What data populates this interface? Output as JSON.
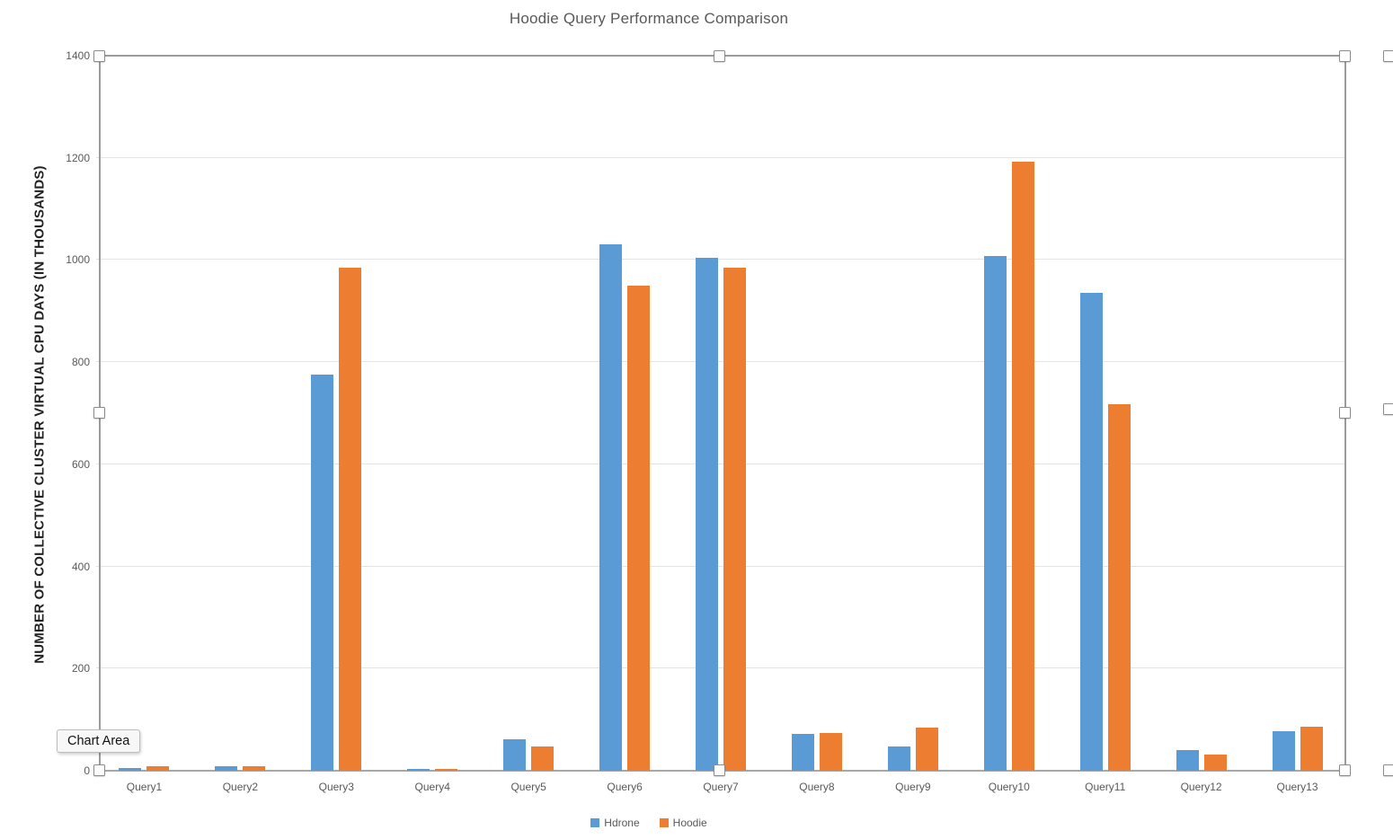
{
  "chart_data": {
    "type": "bar",
    "title": "Hoodie Query Performance Comparison",
    "xlabel": "",
    "ylabel": "NUMBER OF COLLECTIVE CLUSTER VIRTUAL CPU DAYS (IN THOUSANDS)",
    "categories": [
      "Query1",
      "Query2",
      "Query3",
      "Query4",
      "Query5",
      "Query6",
      "Query7",
      "Query8",
      "Query9",
      "Query10",
      "Query11",
      "Query12",
      "Query13"
    ],
    "series": [
      {
        "name": "Hdrone",
        "color": "#5B9BD5",
        "values": [
          5,
          8,
          775,
          4,
          61,
          1030,
          1005,
          73,
          48,
          1008,
          935,
          40,
          77
        ]
      },
      {
        "name": "Hoodie",
        "color": "#ED7D31",
        "values": [
          8,
          8,
          985,
          4,
          48,
          950,
          985,
          74,
          84,
          1192,
          718,
          32,
          87
        ]
      }
    ],
    "ylim": [
      0,
      1400
    ],
    "yticks": [
      0,
      200,
      400,
      600,
      800,
      1000,
      1200,
      1400
    ],
    "grid": true,
    "legend_position": "bottom"
  },
  "selection": {
    "tooltip": "Chart Area"
  },
  "colors": {
    "series_blue": "#5B9BD5",
    "series_orange": "#ED7D31",
    "grid_line": "#E4E4E4",
    "axis_line": "#A8A8A8",
    "tick_text": "#595959",
    "title_text": "#595959"
  }
}
